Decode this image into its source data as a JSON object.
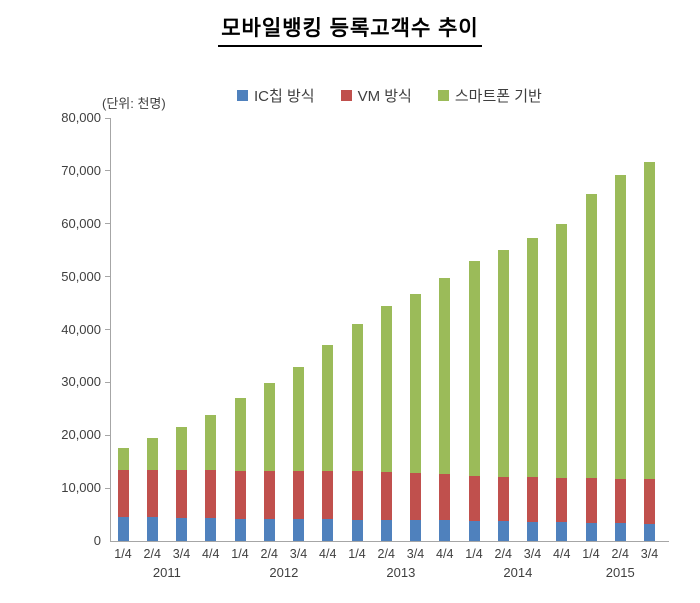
{
  "title": "모바일뱅킹 등록고객수 추이",
  "unit_label": "(단위: 천명)",
  "legend": [
    {
      "label": "IC칩 방식",
      "color": "#4f81bd"
    },
    {
      "label": "VM 방식",
      "color": "#c0504d"
    },
    {
      "label": "스마트폰 기반",
      "color": "#9bbb59"
    }
  ],
  "colors": {
    "ic_chip": "#4f81bd",
    "vm": "#c0504d",
    "smartphone": "#9bbb59",
    "axis": "#a6a6a6",
    "text": "#3f3f3f"
  },
  "chart_data": {
    "type": "bar",
    "stacked": true,
    "title": "모바일뱅킹 등록고객수 추이",
    "unit": "천명",
    "categories": [
      "1/4",
      "2/4",
      "3/4",
      "4/4",
      "1/4",
      "2/4",
      "3/4",
      "4/4",
      "1/4",
      "2/4",
      "3/4",
      "4/4",
      "1/4",
      "2/4",
      "3/4",
      "4/4",
      "1/4",
      "2/4",
      "3/4"
    ],
    "year_groups": [
      {
        "year": "2011",
        "count": 4
      },
      {
        "year": "2012",
        "count": 4
      },
      {
        "year": "2013",
        "count": 4
      },
      {
        "year": "2014",
        "count": 4
      },
      {
        "year": "2015",
        "count": 3
      }
    ],
    "series": [
      {
        "name": "IC칩 방식",
        "color": "#4f81bd",
        "values": [
          4600,
          4500,
          4400,
          4300,
          4250,
          4200,
          4150,
          4100,
          4050,
          4000,
          3950,
          3900,
          3800,
          3700,
          3650,
          3550,
          3500,
          3400,
          3300
        ]
      },
      {
        "name": "VM 방식",
        "color": "#c0504d",
        "values": [
          8900,
          8950,
          9000,
          9050,
          9050,
          9100,
          9150,
          9200,
          9100,
          9000,
          8850,
          8700,
          8500,
          8400,
          8400,
          8350,
          8350,
          8400,
          8450
        ]
      },
      {
        "name": "스마트폰 기반",
        "color": "#9bbb59",
        "values": [
          4000,
          6100,
          8200,
          10450,
          13800,
          16600,
          19600,
          23800,
          27950,
          31400,
          34000,
          37200,
          40600,
          42900,
          45350,
          48100,
          53750,
          57400,
          59950
        ]
      }
    ],
    "totals": [
      17500,
      19550,
      21600,
      23800,
      27100,
      29900,
      32900,
      37100,
      41100,
      44400,
      46800,
      49800,
      52900,
      55000,
      57400,
      60000,
      65600,
      69200,
      71700
    ],
    "ylim": [
      0,
      80000
    ],
    "ytick_step": 10000,
    "ytick_labels": [
      "0",
      "10,000",
      "20,000",
      "30,000",
      "40,000",
      "50,000",
      "60,000",
      "70,000",
      "80,000"
    ],
    "grid": false,
    "legend_position": "top"
  }
}
